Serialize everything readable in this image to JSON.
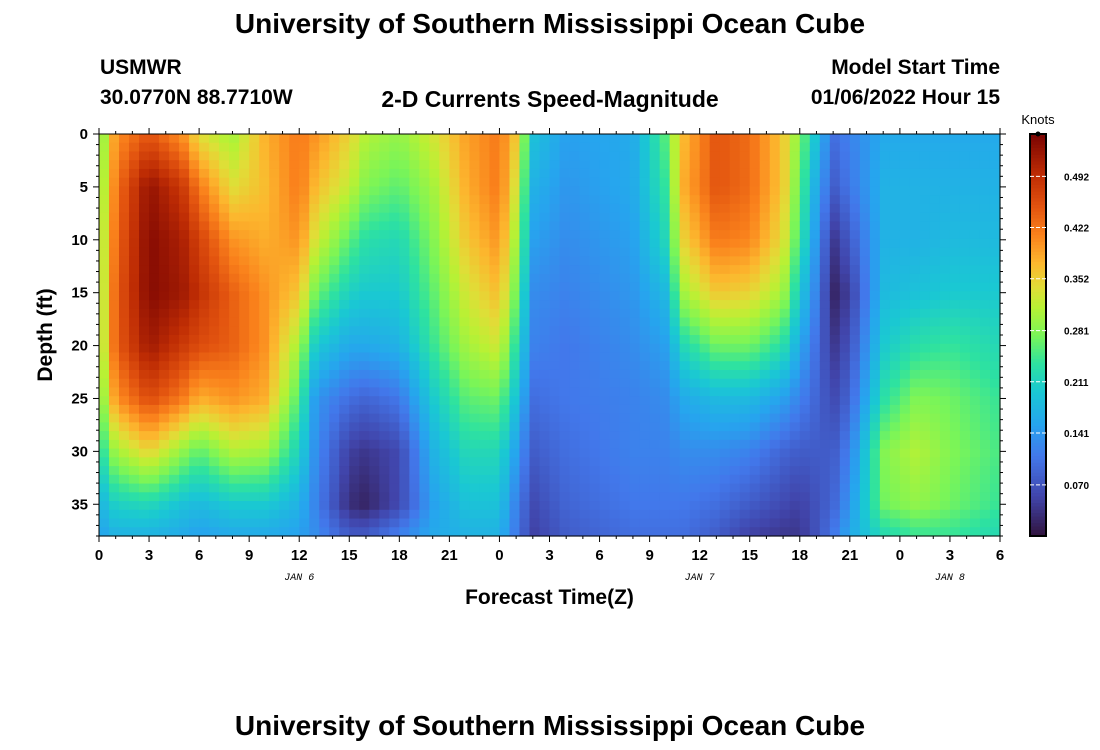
{
  "header": {
    "title": "University of Southern Mississippi Ocean Cube",
    "station": "USMWR",
    "coords": "30.0770N  88.7710W",
    "plot_title": "2-D Currents Speed-Magnitude",
    "start_label": "Model Start Time",
    "start_value": "01/06/2022 Hour 15",
    "footer_title": "University of Southern Mississippi Ocean Cube"
  },
  "chart_data": {
    "type": "heatmap",
    "title": "2-D Currents Speed-Magnitude",
    "xlabel": "Forecast Time(Z)",
    "ylabel": "Depth (ft)",
    "x_range_hours": [
      0,
      54
    ],
    "y_range_ft": [
      0,
      38
    ],
    "x_tick_hours": [
      0,
      3,
      6,
      9,
      12,
      15,
      18,
      21,
      24,
      27,
      30,
      33,
      36,
      39,
      42,
      45,
      48,
      51,
      54
    ],
    "x_tick_labels": [
      "0",
      "3",
      "6",
      "9",
      "12",
      "15",
      "18",
      "21",
      "0",
      "3",
      "6",
      "9",
      "12",
      "15",
      "18",
      "21",
      "0",
      "3",
      "6"
    ],
    "y_ticks": [
      0,
      5,
      10,
      15,
      20,
      25,
      30,
      35
    ],
    "date_labels": [
      {
        "hour": 12,
        "text": "JAN 6"
      },
      {
        "hour": 36,
        "text": "JAN 7"
      },
      {
        "hour": 51,
        "text": "JAN 8"
      }
    ],
    "colorbar": {
      "title": "Knots",
      "min": 0.0,
      "max": 0.55,
      "tick_values": [
        0.07,
        0.141,
        0.211,
        0.281,
        0.352,
        0.422,
        0.492
      ],
      "tick_labels": [
        "0.070",
        "0.141",
        "0.211",
        "0.281",
        "0.352",
        "0.422",
        "0.492"
      ]
    },
    "depth_levels_ft": [
      0,
      5,
      10,
      15,
      20,
      25,
      30,
      35,
      38
    ],
    "speed_profiles": [
      {
        "hour": 0,
        "values": [
          0.26,
          0.27,
          0.28,
          0.28,
          0.28,
          0.26,
          0.22,
          0.17,
          0.15
        ]
      },
      {
        "hour": 1,
        "values": [
          0.4,
          0.42,
          0.43,
          0.44,
          0.44,
          0.4,
          0.3,
          0.21,
          0.17
        ]
      },
      {
        "hour": 3,
        "values": [
          0.45,
          0.53,
          0.54,
          0.54,
          0.52,
          0.46,
          0.35,
          0.22,
          0.17
        ]
      },
      {
        "hour": 5,
        "values": [
          0.4,
          0.48,
          0.51,
          0.52,
          0.48,
          0.42,
          0.29,
          0.19,
          0.16
        ]
      },
      {
        "hour": 6,
        "values": [
          0.34,
          0.42,
          0.47,
          0.49,
          0.46,
          0.38,
          0.26,
          0.18,
          0.15
        ]
      },
      {
        "hour": 8,
        "values": [
          0.3,
          0.34,
          0.4,
          0.44,
          0.44,
          0.4,
          0.31,
          0.2,
          0.16
        ]
      },
      {
        "hour": 10,
        "values": [
          0.38,
          0.37,
          0.38,
          0.4,
          0.4,
          0.38,
          0.3,
          0.2,
          0.16
        ]
      },
      {
        "hour": 12,
        "values": [
          0.42,
          0.42,
          0.4,
          0.36,
          0.3,
          0.25,
          0.21,
          0.17,
          0.15
        ]
      },
      {
        "hour": 13,
        "values": [
          0.4,
          0.37,
          0.33,
          0.27,
          0.2,
          0.14,
          0.13,
          0.12,
          0.13
        ]
      },
      {
        "hour": 15,
        "values": [
          0.35,
          0.32,
          0.26,
          0.21,
          0.16,
          0.1,
          0.05,
          0.03,
          0.08
        ]
      },
      {
        "hour": 16,
        "values": [
          0.31,
          0.28,
          0.23,
          0.2,
          0.16,
          0.09,
          0.04,
          0.02,
          0.08
        ]
      },
      {
        "hour": 18,
        "values": [
          0.29,
          0.26,
          0.22,
          0.2,
          0.17,
          0.11,
          0.06,
          0.06,
          0.12
        ]
      },
      {
        "hour": 20,
        "values": [
          0.33,
          0.3,
          0.28,
          0.26,
          0.24,
          0.2,
          0.17,
          0.15,
          0.16
        ]
      },
      {
        "hour": 22,
        "values": [
          0.39,
          0.38,
          0.36,
          0.33,
          0.3,
          0.26,
          0.22,
          0.19,
          0.17
        ]
      },
      {
        "hour": 24,
        "values": [
          0.42,
          0.42,
          0.4,
          0.37,
          0.33,
          0.27,
          0.22,
          0.19,
          0.17
        ]
      },
      {
        "hour": 25,
        "values": [
          0.36,
          0.33,
          0.3,
          0.27,
          0.23,
          0.19,
          0.15,
          0.12,
          0.11
        ]
      },
      {
        "hour": 26,
        "values": [
          0.19,
          0.17,
          0.15,
          0.13,
          0.12,
          0.1,
          0.08,
          0.06,
          0.05
        ]
      },
      {
        "hour": 28,
        "values": [
          0.15,
          0.14,
          0.13,
          0.12,
          0.11,
          0.11,
          0.1,
          0.09,
          0.08
        ]
      },
      {
        "hour": 32,
        "values": [
          0.16,
          0.16,
          0.15,
          0.14,
          0.13,
          0.12,
          0.12,
          0.11,
          0.1
        ]
      },
      {
        "hour": 34,
        "values": [
          0.26,
          0.24,
          0.22,
          0.18,
          0.15,
          0.13,
          0.12,
          0.11,
          0.1
        ]
      },
      {
        "hour": 35,
        "values": [
          0.37,
          0.38,
          0.35,
          0.3,
          0.22,
          0.16,
          0.13,
          0.11,
          0.1
        ]
      },
      {
        "hour": 37,
        "values": [
          0.45,
          0.45,
          0.42,
          0.36,
          0.27,
          0.18,
          0.13,
          0.1,
          0.08
        ]
      },
      {
        "hour": 39,
        "values": [
          0.43,
          0.43,
          0.41,
          0.35,
          0.27,
          0.18,
          0.12,
          0.08,
          0.05
        ]
      },
      {
        "hour": 41,
        "values": [
          0.36,
          0.36,
          0.34,
          0.3,
          0.23,
          0.15,
          0.09,
          0.06,
          0.04
        ]
      },
      {
        "hour": 42,
        "values": [
          0.28,
          0.26,
          0.24,
          0.2,
          0.16,
          0.12,
          0.08,
          0.05,
          0.04
        ]
      },
      {
        "hour": 43,
        "values": [
          0.19,
          0.16,
          0.14,
          0.12,
          0.1,
          0.09,
          0.08,
          0.07,
          0.07
        ]
      },
      {
        "hour": 44,
        "values": [
          0.1,
          0.08,
          0.04,
          0.02,
          0.04,
          0.06,
          0.08,
          0.09,
          0.11
        ]
      },
      {
        "hour": 45,
        "values": [
          0.12,
          0.11,
          0.08,
          0.05,
          0.07,
          0.09,
          0.12,
          0.14,
          0.16
        ]
      },
      {
        "hour": 47,
        "values": [
          0.16,
          0.17,
          0.17,
          0.18,
          0.2,
          0.23,
          0.28,
          0.27,
          0.22
        ]
      },
      {
        "hour": 49,
        "values": [
          0.16,
          0.17,
          0.17,
          0.19,
          0.23,
          0.28,
          0.31,
          0.29,
          0.24
        ]
      },
      {
        "hour": 51,
        "values": [
          0.16,
          0.17,
          0.18,
          0.2,
          0.24,
          0.27,
          0.28,
          0.27,
          0.24
        ]
      },
      {
        "hour": 54,
        "values": [
          0.16,
          0.17,
          0.18,
          0.2,
          0.22,
          0.24,
          0.25,
          0.24,
          0.22
        ]
      }
    ]
  }
}
